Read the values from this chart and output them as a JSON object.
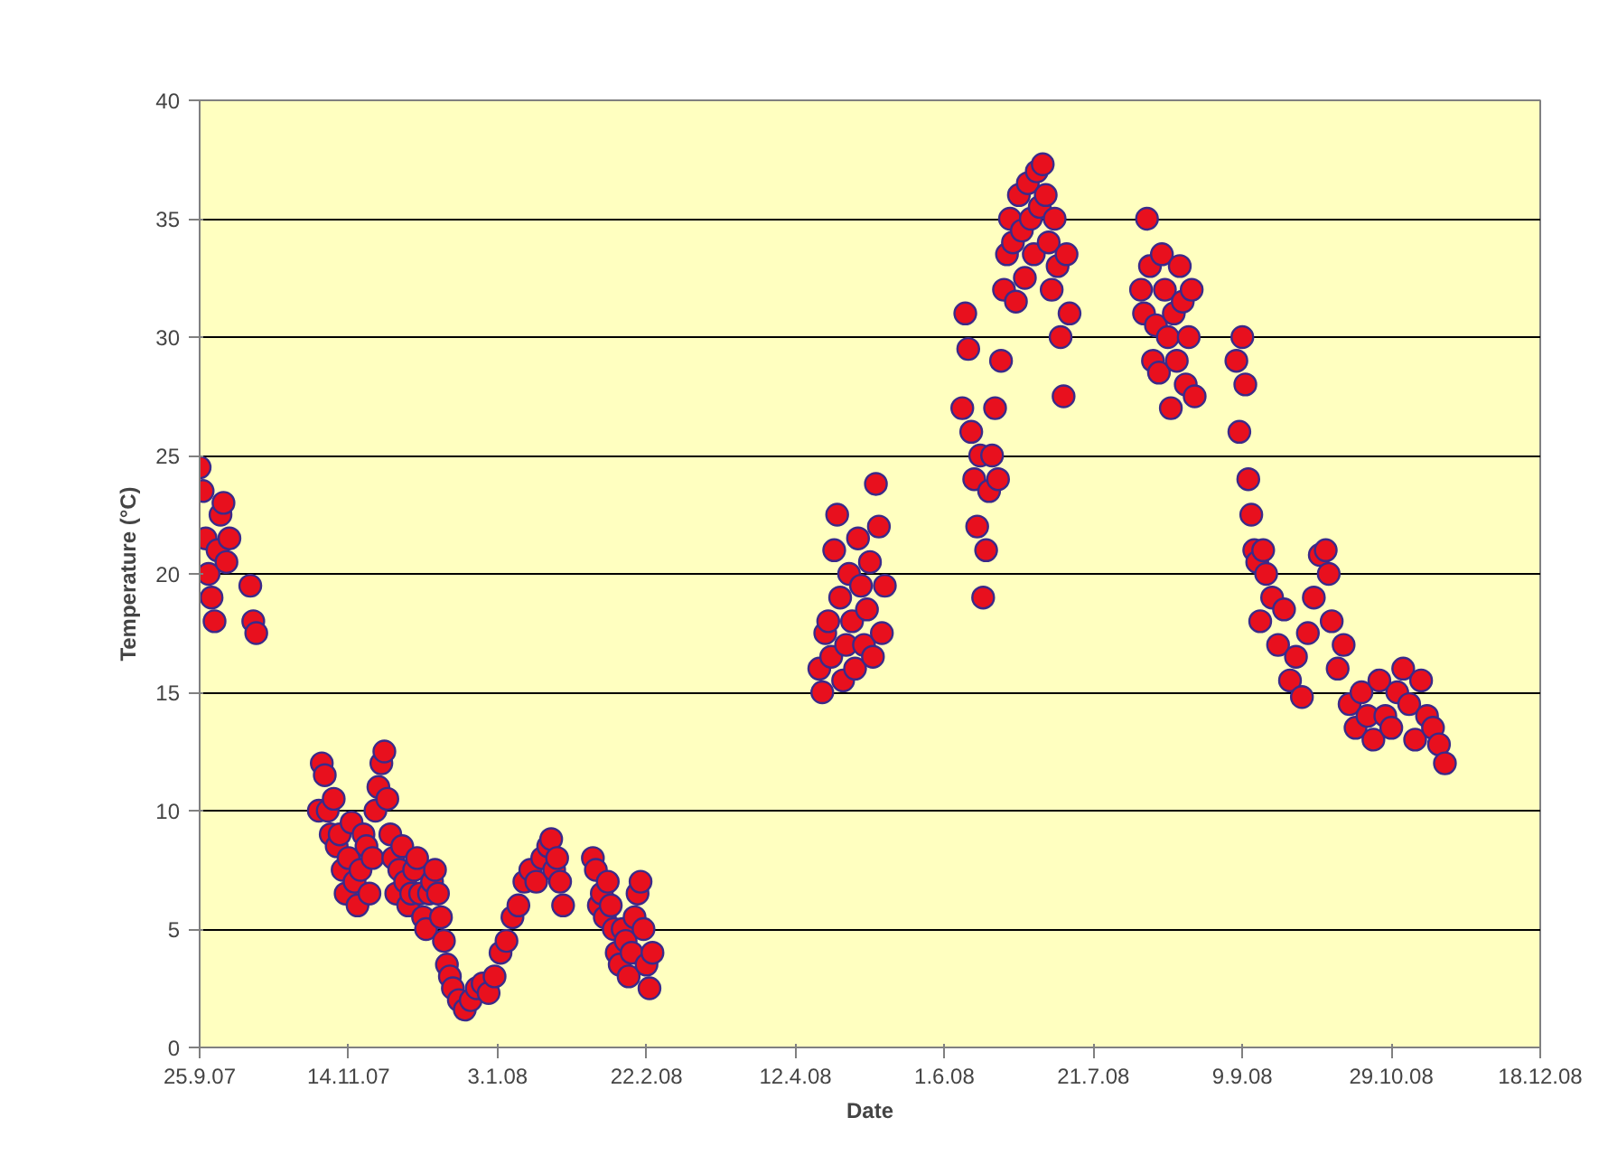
{
  "chart_data": {
    "type": "scatter",
    "xlabel": "Date",
    "ylabel": "Temperature (°C)",
    "xlim": [
      "2007-09-25",
      "2008-12-18"
    ],
    "xticks": [
      {
        "value": "2007-09-25",
        "label": "25.9.07"
      },
      {
        "value": "2007-11-14",
        "label": "14.11.07"
      },
      {
        "value": "2008-01-03",
        "label": "3.1.08"
      },
      {
        "value": "2008-02-22",
        "label": "22.2.08"
      },
      {
        "value": "2008-04-12",
        "label": "12.4.08"
      },
      {
        "value": "2008-06-01",
        "label": "1.6.08"
      },
      {
        "value": "2008-07-21",
        "label": "21.7.08"
      },
      {
        "value": "2008-09-09",
        "label": "9.9.08"
      },
      {
        "value": "2008-10-29",
        "label": "29.10.08"
      },
      {
        "value": "2008-12-18",
        "label": "18.12.08"
      }
    ],
    "ylim": [
      0,
      40
    ],
    "yticks": [
      0,
      5,
      10,
      15,
      20,
      25,
      30,
      35,
      40
    ],
    "grid": "y",
    "marker": "circle",
    "series": [
      {
        "color": "#e8101e",
        "x": [
          "2007-09-25",
          "2007-09-26",
          "2007-09-27",
          "2007-09-28",
          "2007-09-29",
          "2007-09-30",
          "2007-10-01",
          "2007-10-02",
          "2007-10-03",
          "2007-10-04",
          "2007-10-05",
          "2007-10-12",
          "2007-10-13",
          "2007-10-14",
          "2007-11-04",
          "2007-11-05",
          "2007-11-06",
          "2007-11-07",
          "2007-11-08",
          "2007-11-09",
          "2007-11-10",
          "2007-11-11",
          "2007-11-12",
          "2007-11-13",
          "2007-11-14",
          "2007-11-15",
          "2007-11-16",
          "2007-11-17",
          "2007-11-18",
          "2007-11-19",
          "2007-11-20",
          "2007-11-21",
          "2007-11-22",
          "2007-11-23",
          "2007-11-24",
          "2007-11-25",
          "2007-11-26",
          "2007-11-27",
          "2007-11-28",
          "2007-11-29",
          "2007-11-30",
          "2007-12-01",
          "2007-12-02",
          "2007-12-03",
          "2007-12-04",
          "2007-12-05",
          "2007-12-06",
          "2007-12-07",
          "2007-12-08",
          "2007-12-09",
          "2007-12-10",
          "2007-12-11",
          "2007-12-12",
          "2007-12-13",
          "2007-12-14",
          "2007-12-15",
          "2007-12-16",
          "2007-12-17",
          "2007-12-18",
          "2007-12-19",
          "2007-12-21",
          "2007-12-23",
          "2007-12-25",
          "2007-12-27",
          "2007-12-29",
          "2007-12-31",
          "2008-01-02",
          "2008-01-04",
          "2008-01-06",
          "2008-01-08",
          "2008-01-10",
          "2008-01-12",
          "2008-01-14",
          "2008-01-16",
          "2008-01-18",
          "2008-01-20",
          "2008-01-21",
          "2008-01-22",
          "2008-01-23",
          "2008-01-24",
          "2008-01-25",
          "2008-02-04",
          "2008-02-05",
          "2008-02-06",
          "2008-02-07",
          "2008-02-08",
          "2008-02-09",
          "2008-02-10",
          "2008-02-11",
          "2008-02-12",
          "2008-02-13",
          "2008-02-14",
          "2008-02-15",
          "2008-02-16",
          "2008-02-17",
          "2008-02-18",
          "2008-02-19",
          "2008-02-20",
          "2008-02-21",
          "2008-02-22",
          "2008-02-23",
          "2008-02-24",
          "2008-04-20",
          "2008-04-21",
          "2008-04-22",
          "2008-04-23",
          "2008-04-24",
          "2008-04-25",
          "2008-04-26",
          "2008-04-27",
          "2008-04-28",
          "2008-04-29",
          "2008-04-30",
          "2008-05-01",
          "2008-05-02",
          "2008-05-03",
          "2008-05-04",
          "2008-05-05",
          "2008-05-06",
          "2008-05-07",
          "2008-05-08",
          "2008-05-09",
          "2008-05-10",
          "2008-05-11",
          "2008-05-12",
          "2008-06-07",
          "2008-06-08",
          "2008-06-09",
          "2008-06-10",
          "2008-06-11",
          "2008-06-12",
          "2008-06-13",
          "2008-06-14",
          "2008-06-15",
          "2008-06-16",
          "2008-06-17",
          "2008-06-18",
          "2008-06-19",
          "2008-06-20",
          "2008-06-21",
          "2008-06-22",
          "2008-06-23",
          "2008-06-24",
          "2008-06-25",
          "2008-06-26",
          "2008-06-27",
          "2008-06-28",
          "2008-06-29",
          "2008-06-30",
          "2008-07-01",
          "2008-07-02",
          "2008-07-03",
          "2008-07-04",
          "2008-07-05",
          "2008-07-06",
          "2008-07-07",
          "2008-07-08",
          "2008-07-09",
          "2008-07-10",
          "2008-07-11",
          "2008-07-12",
          "2008-07-13",
          "2008-08-06",
          "2008-08-07",
          "2008-08-08",
          "2008-08-09",
          "2008-08-10",
          "2008-08-11",
          "2008-08-12",
          "2008-08-13",
          "2008-08-14",
          "2008-08-15",
          "2008-08-16",
          "2008-08-17",
          "2008-08-18",
          "2008-08-19",
          "2008-08-20",
          "2008-08-21",
          "2008-08-22",
          "2008-08-23",
          "2008-08-24",
          "2008-09-07",
          "2008-09-08",
          "2008-09-09",
          "2008-09-10",
          "2008-09-11",
          "2008-09-12",
          "2008-09-13",
          "2008-09-14",
          "2008-09-15",
          "2008-09-16",
          "2008-09-17",
          "2008-09-19",
          "2008-09-21",
          "2008-09-23",
          "2008-09-25",
          "2008-09-27",
          "2008-09-29",
          "2008-10-01",
          "2008-10-03",
          "2008-10-05",
          "2008-10-07",
          "2008-10-08",
          "2008-10-09",
          "2008-10-11",
          "2008-10-13",
          "2008-10-15",
          "2008-10-17",
          "2008-10-19",
          "2008-10-21",
          "2008-10-23",
          "2008-10-25",
          "2008-10-27",
          "2008-10-29",
          "2008-10-31",
          "2008-11-02",
          "2008-11-04",
          "2008-11-06",
          "2008-11-08",
          "2008-11-10",
          "2008-11-12",
          "2008-11-14",
          "2008-11-16"
        ],
        "values": [
          24.5,
          23.5,
          21.5,
          20,
          19,
          18,
          21,
          22.5,
          23,
          20.5,
          21.5,
          19.5,
          18,
          17.5,
          10,
          12,
          11.5,
          10,
          9,
          10.5,
          8.5,
          9,
          7.5,
          6.5,
          8,
          9.5,
          7,
          6,
          7.5,
          9,
          8.5,
          6.5,
          8,
          10,
          11,
          12,
          12.5,
          10.5,
          9,
          8,
          6.5,
          7.5,
          8.5,
          7,
          6,
          6.5,
          7.5,
          8,
          6.5,
          5.5,
          5,
          6.5,
          7,
          7.5,
          6.5,
          5.5,
          4.5,
          3.5,
          3,
          2.5,
          2,
          1.6,
          2,
          2.5,
          2.7,
          2.3,
          3,
          4,
          4.5,
          5.5,
          6,
          7,
          7.5,
          7,
          8,
          8.5,
          8.8,
          7.5,
          8,
          7,
          6,
          8,
          7.5,
          6,
          6.5,
          5.5,
          7,
          6,
          5,
          4,
          3.5,
          5,
          4.5,
          3,
          4,
          5.5,
          6.5,
          7,
          5,
          3.5,
          2.5,
          4,
          16,
          15,
          17.5,
          18,
          16.5,
          21,
          22.5,
          19,
          15.5,
          17,
          20,
          18,
          16,
          21.5,
          19.5,
          17,
          18.5,
          20.5,
          16.5,
          23.8,
          22,
          17.5,
          19.5,
          27,
          31,
          29.5,
          26,
          24,
          22,
          25,
          19,
          21,
          23.5,
          25,
          27,
          24,
          29,
          32,
          33.5,
          35,
          34,
          31.5,
          36,
          34.5,
          32.5,
          36.5,
          35,
          33.5,
          37,
          35.5,
          37.3,
          36,
          34,
          32,
          35,
          33,
          30,
          27.5,
          33.5,
          31,
          32,
          31,
          35,
          33,
          29,
          30.5,
          28.5,
          33.5,
          32,
          30,
          27,
          31,
          29,
          33,
          31.5,
          28,
          30,
          32,
          27.5,
          29,
          26,
          30,
          28,
          24,
          22.5,
          21,
          20.5,
          18,
          21,
          20,
          19,
          17,
          18.5,
          15.5,
          16.5,
          14.8,
          17.5,
          19,
          20.8,
          21,
          20,
          18,
          16,
          17,
          14.5,
          13.5,
          15,
          14,
          13,
          15.5,
          14,
          13.5,
          15,
          16,
          14.5,
          13,
          15.5,
          14,
          13.5,
          12.8,
          12
        ]
      }
    ]
  }
}
